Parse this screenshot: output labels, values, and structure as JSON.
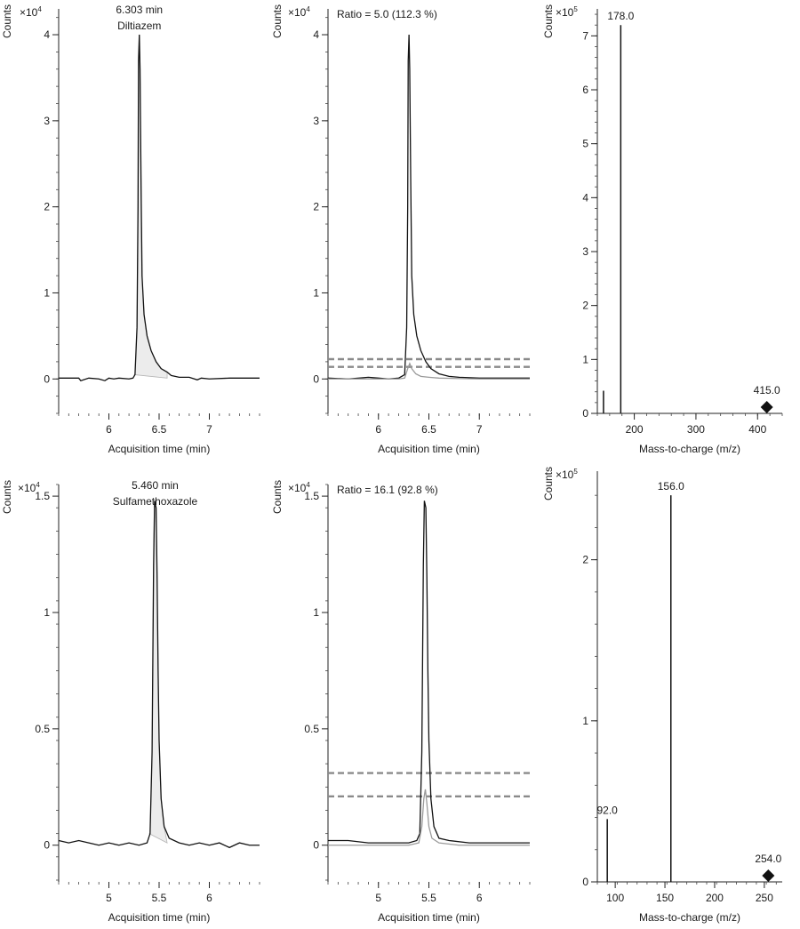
{
  "figure": {
    "ylabel": "Counts",
    "xlabel_time": "Acquisition time (min)",
    "xlabel_mz": "Mass-to-charge (m/z)",
    "mult_4": "×10",
    "mult_exp_4": "4",
    "mult_5": "×10",
    "mult_exp_5": "5"
  },
  "chart_data": [
    {
      "id": "diltiazem-chromatogram",
      "type": "line",
      "compound": "Diltiazem",
      "rt_label": "6.303 min",
      "multiplier": "×10^4",
      "xlabel": "Acquisition time (min)",
      "ylabel": "Counts",
      "xlim": [
        5.5,
        7.5
      ],
      "ylim": [
        -0.4,
        4.3
      ],
      "xticks": [
        6,
        6.5,
        7
      ],
      "xtick_labels": [
        "6",
        "6.5",
        "7"
      ],
      "yticks": [
        0,
        1,
        2,
        3,
        4
      ],
      "ytick_labels": [
        "0",
        "1",
        "2",
        "3",
        "4"
      ],
      "peak_rt": 6.303,
      "peak_height": 4.0,
      "integration_range": [
        6.25,
        6.58
      ],
      "series": [
        {
          "points": [
            [
              5.5,
              0.01
            ],
            [
              5.7,
              0.01
            ],
            [
              5.72,
              -0.02
            ],
            [
              5.8,
              0.01
            ],
            [
              5.9,
              0.0
            ],
            [
              5.96,
              -0.02
            ],
            [
              6.0,
              0.01
            ],
            [
              6.05,
              0.0
            ],
            [
              6.1,
              0.01
            ],
            [
              6.2,
              0.0
            ],
            [
              6.24,
              0.01
            ],
            [
              6.26,
              0.05
            ],
            [
              6.28,
              0.6
            ],
            [
              6.29,
              2.0
            ],
            [
              6.295,
              3.7
            ],
            [
              6.303,
              4.0
            ],
            [
              6.31,
              3.6
            ],
            [
              6.32,
              2.3
            ],
            [
              6.33,
              1.2
            ],
            [
              6.35,
              0.75
            ],
            [
              6.38,
              0.5
            ],
            [
              6.42,
              0.33
            ],
            [
              6.47,
              0.2
            ],
            [
              6.52,
              0.12
            ],
            [
              6.58,
              0.08
            ],
            [
              6.62,
              0.04
            ],
            [
              6.66,
              0.03
            ],
            [
              6.7,
              0.02
            ],
            [
              6.8,
              0.02
            ],
            [
              6.88,
              -0.01
            ],
            [
              6.92,
              0.01
            ],
            [
              7.0,
              0.0
            ],
            [
              7.2,
              0.01
            ],
            [
              7.5,
              0.01
            ]
          ]
        }
      ]
    },
    {
      "id": "diltiazem-qualifier",
      "type": "line",
      "ratio_label": "Ratio = 5.0 (112.3 %)",
      "xlabel": "Acquisition time (min)",
      "ylabel": "Counts",
      "multiplier": "×10^4",
      "xlim": [
        5.5,
        7.5
      ],
      "ylim": [
        -0.4,
        4.3
      ],
      "xticks": [
        6,
        6.5,
        7
      ],
      "xtick_labels": [
        "6",
        "6.5",
        "7"
      ],
      "yticks": [
        0,
        1,
        2,
        3,
        4
      ],
      "ytick_labels": [
        "0",
        "1",
        "2",
        "3",
        "4"
      ],
      "tolerance_band": [
        0.14,
        0.23
      ],
      "series": [
        {
          "name": "quantifier",
          "points": [
            [
              5.5,
              0.01
            ],
            [
              5.7,
              0.0
            ],
            [
              5.9,
              0.02
            ],
            [
              6.0,
              0.01
            ],
            [
              6.1,
              0.0
            ],
            [
              6.2,
              0.01
            ],
            [
              6.26,
              0.05
            ],
            [
              6.28,
              0.6
            ],
            [
              6.29,
              2.0
            ],
            [
              6.295,
              3.7
            ],
            [
              6.303,
              4.0
            ],
            [
              6.31,
              3.6
            ],
            [
              6.32,
              2.3
            ],
            [
              6.33,
              1.2
            ],
            [
              6.35,
              0.75
            ],
            [
              6.38,
              0.5
            ],
            [
              6.42,
              0.33
            ],
            [
              6.47,
              0.2
            ],
            [
              6.52,
              0.12
            ],
            [
              6.6,
              0.06
            ],
            [
              6.7,
              0.03
            ],
            [
              6.8,
              0.02
            ],
            [
              7.0,
              0.01
            ],
            [
              7.5,
              0.01
            ]
          ]
        },
        {
          "name": "qualifier",
          "points": [
            [
              5.5,
              0.0
            ],
            [
              5.8,
              0.0
            ],
            [
              6.0,
              0.0
            ],
            [
              6.2,
              0.0
            ],
            [
              6.26,
              0.01
            ],
            [
              6.29,
              0.12
            ],
            [
              6.31,
              0.18
            ],
            [
              6.33,
              0.12
            ],
            [
              6.37,
              0.06
            ],
            [
              6.42,
              0.03
            ],
            [
              6.5,
              0.02
            ],
            [
              6.6,
              0.01
            ],
            [
              7.0,
              0.0
            ],
            [
              7.5,
              0.0
            ]
          ]
        }
      ]
    },
    {
      "id": "diltiazem-spectrum",
      "type": "bar",
      "xlabel": "Mass-to-charge (m/z)",
      "ylabel": "Counts",
      "multiplier": "×10^5",
      "xlim": [
        140,
        440
      ],
      "ylim": [
        0,
        7.5
      ],
      "xticks": [
        200,
        300,
        400
      ],
      "xtick_labels": [
        "200",
        "300",
        "400"
      ],
      "yticks": [
        0,
        1,
        2,
        3,
        4,
        5,
        6,
        7
      ],
      "ytick_labels": [
        "0",
        "1",
        "2",
        "3",
        "4",
        "5",
        "6",
        "7"
      ],
      "peaks": [
        {
          "mz": 150.0,
          "value": 0.42,
          "label": ""
        },
        {
          "mz": 178.0,
          "value": 7.2,
          "label": "178.0"
        }
      ],
      "precursor": {
        "mz": 415.0,
        "label": "415.0"
      }
    },
    {
      "id": "sulfamethoxazole-chromatogram",
      "type": "line",
      "compound": "Sulfamethoxazole",
      "rt_label": "5.460 min",
      "multiplier": "×10^4",
      "xlabel": "Acquisition time (min)",
      "ylabel": "Counts",
      "xlim": [
        4.5,
        6.5
      ],
      "ylim": [
        -0.15,
        1.55
      ],
      "xticks": [
        5,
        5.5,
        6
      ],
      "xtick_labels": [
        "5",
        "5.5",
        "6"
      ],
      "yticks": [
        0,
        0.5,
        1,
        1.5
      ],
      "ytick_labels": [
        "0",
        "0.5",
        "1",
        "1.5"
      ],
      "peak_rt": 5.46,
      "peak_height": 1.48,
      "integration_range": [
        5.4,
        5.58
      ],
      "series": [
        {
          "points": [
            [
              4.5,
              0.02
            ],
            [
              4.6,
              0.01
            ],
            [
              4.7,
              0.02
            ],
            [
              4.8,
              0.01
            ],
            [
              4.9,
              0.0
            ],
            [
              5.0,
              0.01
            ],
            [
              5.1,
              0.0
            ],
            [
              5.2,
              0.01
            ],
            [
              5.3,
              0.0
            ],
            [
              5.38,
              0.01
            ],
            [
              5.41,
              0.05
            ],
            [
              5.43,
              0.4
            ],
            [
              5.445,
              1.2
            ],
            [
              5.455,
              1.48
            ],
            [
              5.47,
              1.45
            ],
            [
              5.48,
              1.15
            ],
            [
              5.49,
              0.75
            ],
            [
              5.5,
              0.45
            ],
            [
              5.52,
              0.2
            ],
            [
              5.55,
              0.08
            ],
            [
              5.6,
              0.03
            ],
            [
              5.7,
              0.01
            ],
            [
              5.8,
              0.0
            ],
            [
              5.9,
              0.01
            ],
            [
              6.0,
              0.0
            ],
            [
              6.1,
              0.01
            ],
            [
              6.2,
              -0.01
            ],
            [
              6.3,
              0.01
            ],
            [
              6.4,
              0.0
            ],
            [
              6.5,
              0.0
            ]
          ]
        }
      ]
    },
    {
      "id": "sulfamethoxazole-qualifier",
      "type": "line",
      "ratio_label": "Ratio = 16.1 (92.8 %)",
      "xlabel": "Acquisition time (min)",
      "ylabel": "Counts",
      "multiplier": "×10^4",
      "xlim": [
        4.5,
        6.5
      ],
      "ylim": [
        -0.15,
        1.55
      ],
      "xticks": [
        5,
        5.5,
        6
      ],
      "xtick_labels": [
        "5",
        "5.5",
        "6"
      ],
      "yticks": [
        0,
        0.5,
        1,
        1.5
      ],
      "ytick_labels": [
        "0",
        "0.5",
        "1",
        "1.5"
      ],
      "tolerance_band": [
        0.21,
        0.31
      ],
      "series": [
        {
          "name": "quantifier",
          "points": [
            [
              4.5,
              0.02
            ],
            [
              4.7,
              0.02
            ],
            [
              4.9,
              0.01
            ],
            [
              5.1,
              0.01
            ],
            [
              5.3,
              0.01
            ],
            [
              5.38,
              0.02
            ],
            [
              5.41,
              0.05
            ],
            [
              5.43,
              0.4
            ],
            [
              5.445,
              1.2
            ],
            [
              5.455,
              1.48
            ],
            [
              5.47,
              1.45
            ],
            [
              5.48,
              1.15
            ],
            [
              5.49,
              0.75
            ],
            [
              5.5,
              0.45
            ],
            [
              5.52,
              0.2
            ],
            [
              5.55,
              0.08
            ],
            [
              5.6,
              0.03
            ],
            [
              5.7,
              0.02
            ],
            [
              5.9,
              0.01
            ],
            [
              6.1,
              0.01
            ],
            [
              6.3,
              0.01
            ],
            [
              6.5,
              0.01
            ]
          ]
        },
        {
          "name": "qualifier",
          "points": [
            [
              4.5,
              0.0
            ],
            [
              5.0,
              0.0
            ],
            [
              5.3,
              0.0
            ],
            [
              5.4,
              0.01
            ],
            [
              5.43,
              0.08
            ],
            [
              5.45,
              0.2
            ],
            [
              5.465,
              0.24
            ],
            [
              5.48,
              0.18
            ],
            [
              5.5,
              0.08
            ],
            [
              5.53,
              0.03
            ],
            [
              5.6,
              0.01
            ],
            [
              5.8,
              0.0
            ],
            [
              6.5,
              0.0
            ]
          ]
        }
      ]
    },
    {
      "id": "sulfamethoxazole-spectrum",
      "type": "bar",
      "xlabel": "Mass-to-charge (m/z)",
      "ylabel": "Counts",
      "multiplier": "×10^5",
      "xlim": [
        82,
        268
      ],
      "ylim": [
        0,
        2.55
      ],
      "xticks": [
        100,
        150,
        200,
        250
      ],
      "xtick_labels": [
        "100",
        "150",
        "200",
        "250"
      ],
      "yticks": [
        0,
        1,
        2
      ],
      "ytick_labels": [
        "0",
        "1",
        "2"
      ],
      "peaks": [
        {
          "mz": 92.0,
          "value": 0.39,
          "label": "92.0"
        },
        {
          "mz": 156.0,
          "value": 2.4,
          "label": "156.0"
        }
      ],
      "precursor": {
        "mz": 254.0,
        "label": "254.0"
      }
    }
  ]
}
